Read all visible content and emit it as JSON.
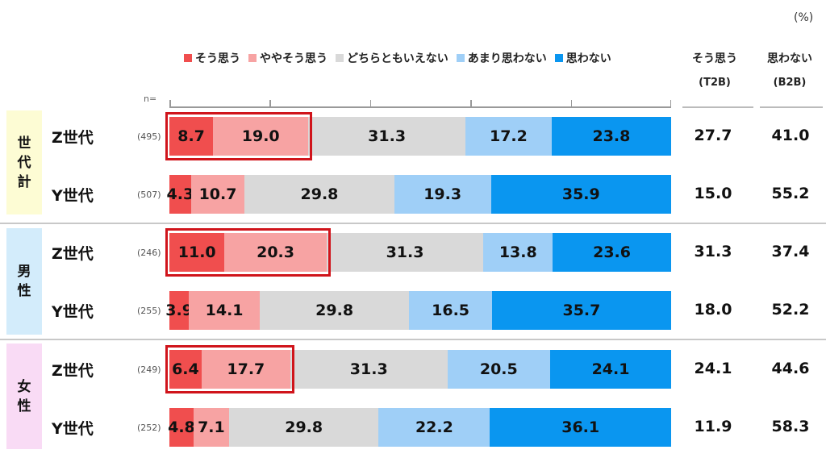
{
  "unit_label": "(%)",
  "n_label": "n=",
  "legend": [
    {
      "label": "そう思う",
      "color": "#f04e4e"
    },
    {
      "label": "ややそう思う",
      "color": "#f7a3a3"
    },
    {
      "label": "どちらともいえない",
      "color": "#d9d9d9"
    },
    {
      "label": "あまり思わない",
      "color": "#9fcff7"
    },
    {
      "label": "思わない",
      "color": "#0a96f0"
    }
  ],
  "col_t2b": {
    "title": "そう思う",
    "sub": "(T2B)"
  },
  "col_b2b": {
    "title": "思わない",
    "sub": "(B2B)"
  },
  "groups": [
    {
      "label": [
        "世",
        "代",
        "計"
      ],
      "color": "#fdfcd4"
    },
    {
      "label": [
        "男",
        "性"
      ],
      "color": "#d3ecfb"
    },
    {
      "label": [
        "女",
        "性"
      ],
      "color": "#f9dbf5"
    }
  ],
  "chart_data": {
    "type": "bar",
    "stacked": true,
    "orientation": "horizontal",
    "unit": "%",
    "series_names": [
      "そう思う",
      "ややそう思う",
      "どちらともいえない",
      "あまり思わない",
      "思わない"
    ],
    "rows": [
      {
        "group": 0,
        "label": "Z世代",
        "n": "(495)",
        "values": [
          8.7,
          19.0,
          31.3,
          17.2,
          23.8
        ],
        "labels": [
          "8.7",
          "19.0",
          "31.3",
          "17.2",
          "23.8"
        ],
        "t2b": "27.7",
        "b2b": "41.0",
        "highlight": true
      },
      {
        "group": 0,
        "label": "Y世代",
        "n": "(507)",
        "values": [
          4.3,
          10.7,
          29.8,
          19.3,
          35.9
        ],
        "labels": [
          "4.3",
          "10.7",
          "29.8",
          "19.3",
          "35.9"
        ],
        "t2b": "15.0",
        "b2b": "55.2",
        "highlight": false
      },
      {
        "group": 1,
        "label": "Z世代",
        "n": "(246)",
        "values": [
          11.0,
          20.3,
          31.3,
          13.8,
          23.6
        ],
        "labels": [
          "11.0",
          "20.3",
          "31.3",
          "13.8",
          "23.6"
        ],
        "t2b": "31.3",
        "b2b": "37.4",
        "highlight": true
      },
      {
        "group": 1,
        "label": "Y世代",
        "n": "(255)",
        "values": [
          3.9,
          14.1,
          29.8,
          16.5,
          35.7
        ],
        "labels": [
          "3.9",
          "14.1",
          "29.8",
          "16.5",
          "35.7"
        ],
        "t2b": "18.0",
        "b2b": "52.2",
        "highlight": false
      },
      {
        "group": 2,
        "label": "Z世代",
        "n": "(249)",
        "values": [
          6.4,
          17.7,
          31.3,
          20.5,
          24.1
        ],
        "labels": [
          "6.4",
          "17.7",
          "31.3",
          "20.5",
          "24.1"
        ],
        "t2b": "24.1",
        "b2b": "44.6",
        "highlight": true
      },
      {
        "group": 2,
        "label": "Y世代",
        "n": "(252)",
        "values": [
          4.8,
          7.1,
          29.8,
          22.2,
          36.1
        ],
        "labels": [
          "4.8",
          "7.1",
          "29.8",
          "22.2",
          "36.1"
        ],
        "t2b": "11.9",
        "b2b": "58.3",
        "highlight": false
      }
    ]
  }
}
